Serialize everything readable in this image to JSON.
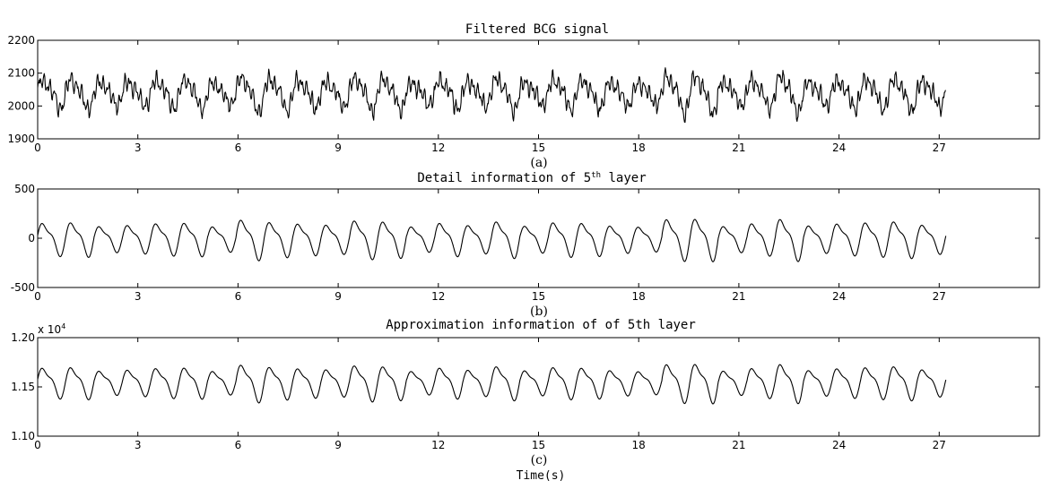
{
  "chart_data": [
    {
      "type": "line",
      "title": "Filtered BCG signal",
      "panel_label": "(a)",
      "x_ticks": [
        0,
        3,
        6,
        9,
        12,
        15,
        18,
        21,
        24,
        27
      ],
      "y_ticks": [
        1900,
        2000,
        2100,
        2200
      ],
      "xlim": [
        0,
        30
      ],
      "ylim": [
        1900,
        2200
      ],
      "baseline": 2040,
      "amplitude": 38,
      "noise": 14,
      "x_end": 27.2,
      "ydecimals": 0
    },
    {
      "type": "line",
      "title_pre": "Detail information of 5",
      "title_sup": "th",
      "title_post": " layer",
      "panel_label": "(b)",
      "x_ticks": [
        0,
        3,
        6,
        9,
        12,
        15,
        18,
        21,
        24,
        27
      ],
      "y_ticks": [
        -500,
        0,
        500
      ],
      "xlim": [
        0,
        30
      ],
      "ylim": [
        -500,
        500
      ],
      "baseline": 0,
      "amplitude": 140,
      "noise": 0,
      "x_end": 27.2,
      "ydecimals": 0
    },
    {
      "type": "line",
      "title": "Approximation information of of 5th layer",
      "panel_label": "(c)",
      "exponent_label": "x 10",
      "exponent_sup": "4",
      "x_ticks": [
        0,
        3,
        6,
        9,
        12,
        15,
        18,
        21,
        24,
        27
      ],
      "y_ticks": [
        1.1,
        1.15,
        1.2
      ],
      "xlim": [
        0,
        30
      ],
      "ylim": [
        1.1,
        1.2
      ],
      "baseline": 1.155,
      "amplitude": 0.013,
      "noise": 0,
      "x_end": 27.2,
      "ydecimals": 2
    }
  ],
  "xlabel": "Time(s)"
}
